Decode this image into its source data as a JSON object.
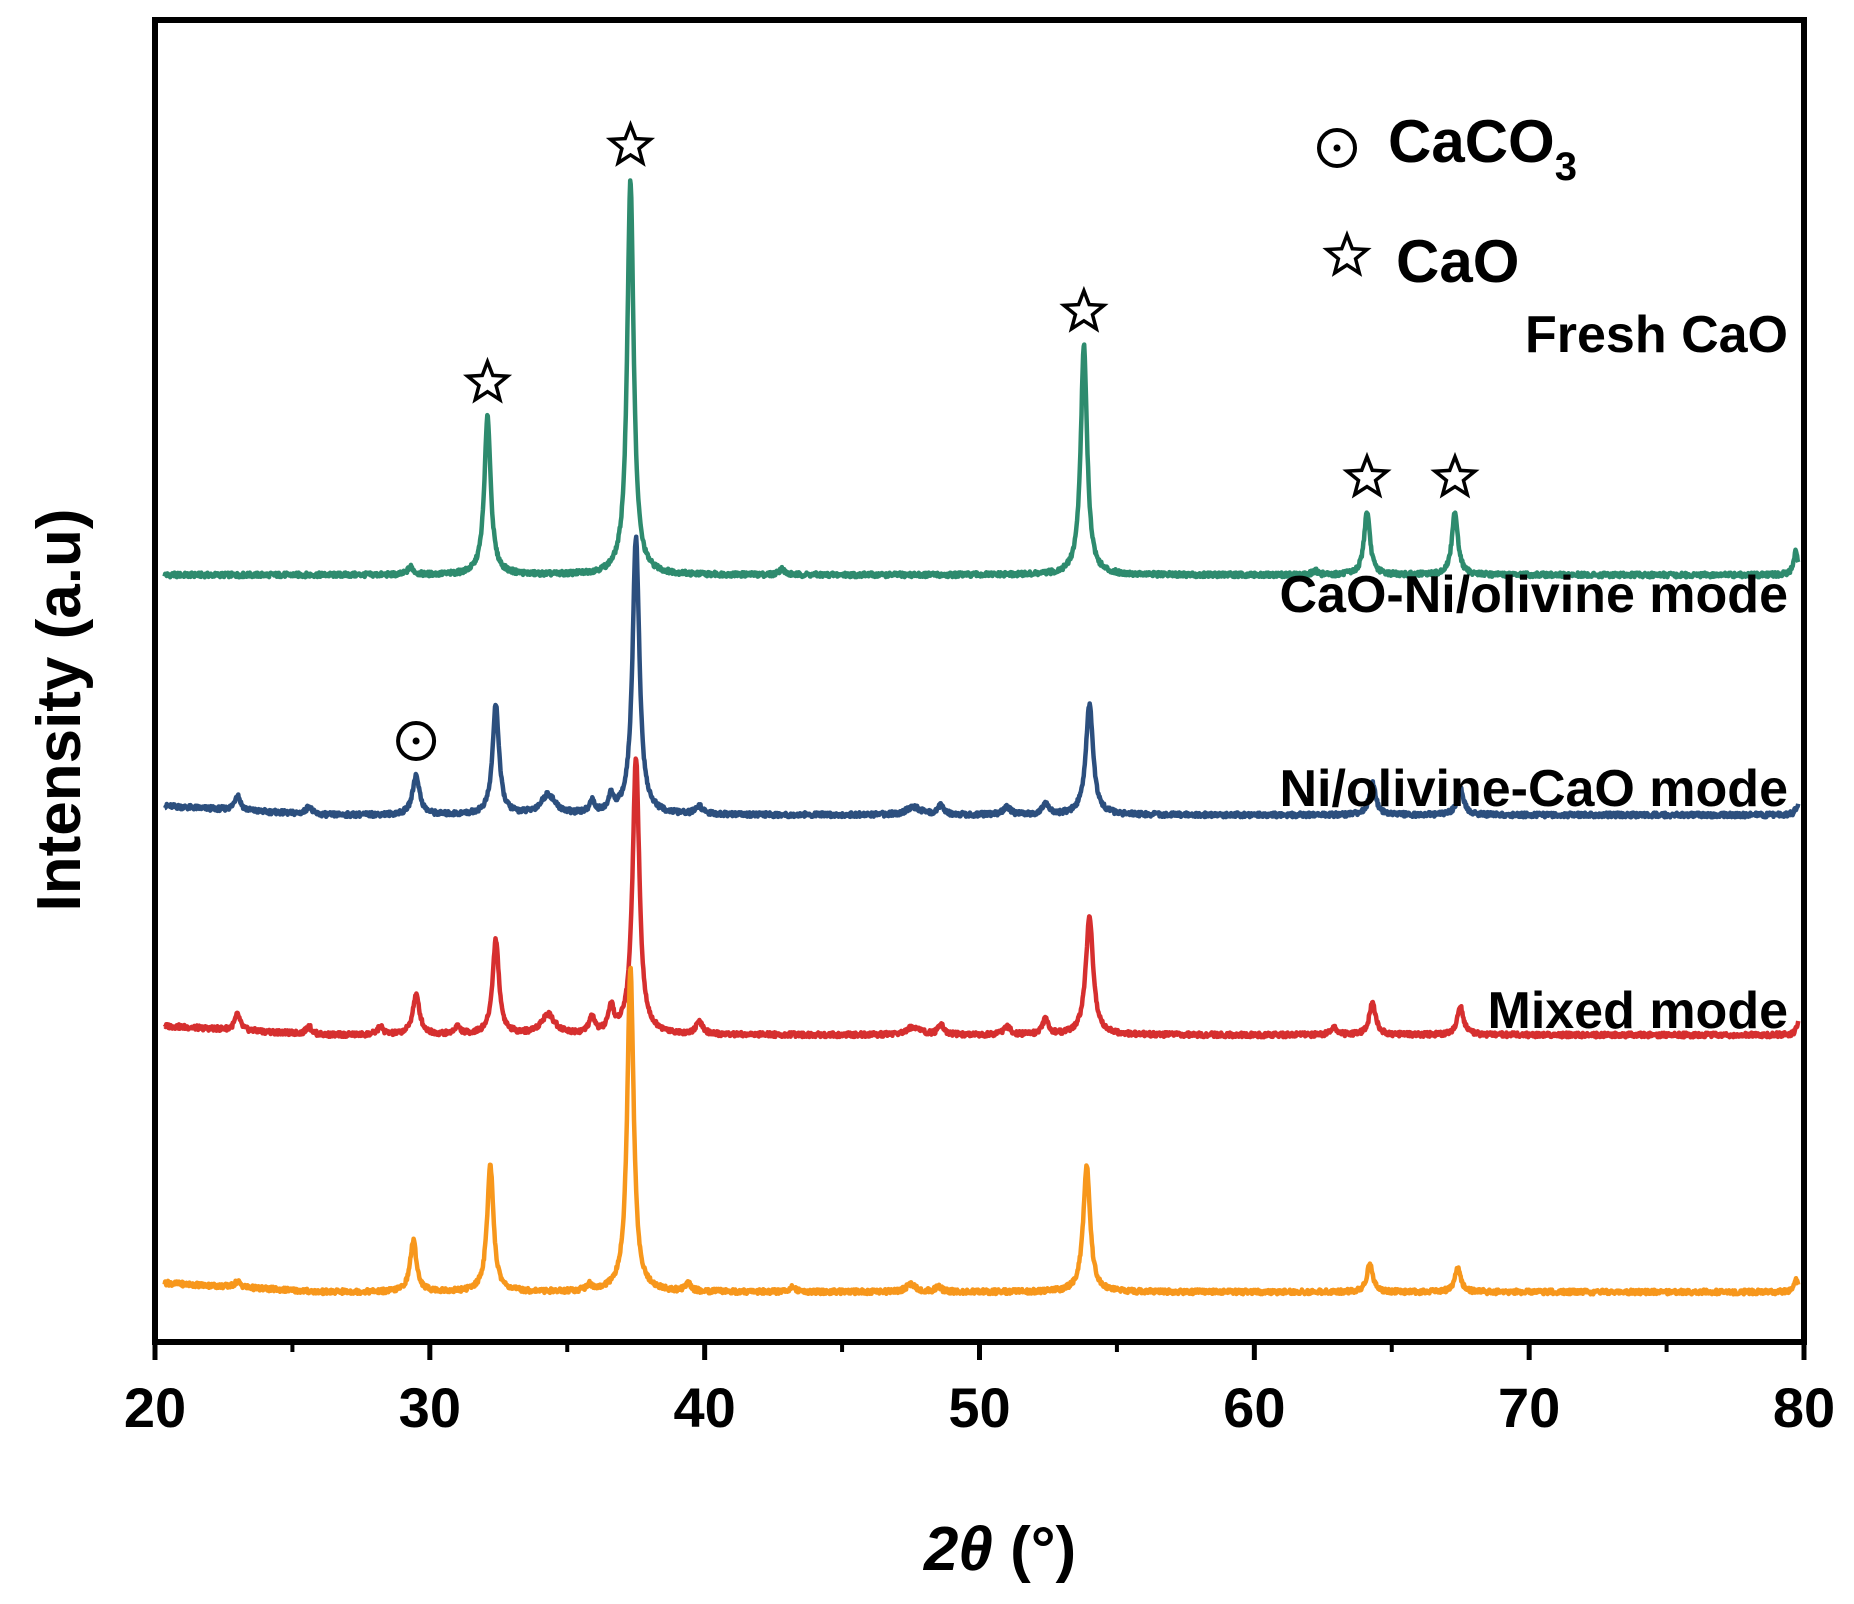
{
  "chart_data": {
    "type": "line",
    "title": "",
    "xlabel": "2θ (°)",
    "xlabel_prefix": "2θ",
    "xlabel_suffix": " (°)",
    "ylabel": "Intensity (a.u)",
    "xlim": [
      20,
      80
    ],
    "x_ticks": [
      20,
      30,
      40,
      50,
      60,
      70,
      80
    ],
    "y_ticks": [],
    "grid": false,
    "legend": [
      {
        "marker": "circle-dot",
        "label": "CaCO",
        "subscript": "3"
      },
      {
        "marker": "star",
        "label": "CaO"
      }
    ],
    "series": [
      {
        "name": "Fresh CaO",
        "color": "#2e8b6e",
        "offset": 3.0,
        "peaks": [
          {
            "x": 29.3,
            "h": 0.02,
            "w": 0.12
          },
          {
            "x": 32.1,
            "h": 0.4,
            "w": 0.14
          },
          {
            "x": 37.3,
            "h": 1.0,
            "w": 0.14
          },
          {
            "x": 42.8,
            "h": 0.015,
            "w": 0.12
          },
          {
            "x": 53.8,
            "h": 0.58,
            "w": 0.14
          },
          {
            "x": 62.2,
            "h": 0.01,
            "w": 0.12
          },
          {
            "x": 64.1,
            "h": 0.16,
            "w": 0.13
          },
          {
            "x": 67.3,
            "h": 0.16,
            "w": 0.13
          },
          {
            "x": 79.7,
            "h": 0.06,
            "w": 0.1
          }
        ]
      },
      {
        "name": "CaO-Ni/olivine mode",
        "color": "#2c4f7e",
        "offset": 2.0,
        "peaks": [
          {
            "x": 23.0,
            "h": 0.04,
            "w": 0.12
          },
          {
            "x": 25.6,
            "h": 0.02,
            "w": 0.12
          },
          {
            "x": 29.5,
            "h": 0.1,
            "w": 0.15
          },
          {
            "x": 32.4,
            "h": 0.28,
            "w": 0.14
          },
          {
            "x": 34.3,
            "h": 0.05,
            "w": 0.3
          },
          {
            "x": 35.9,
            "h": 0.03,
            "w": 0.12
          },
          {
            "x": 36.6,
            "h": 0.04,
            "w": 0.12
          },
          {
            "x": 37.5,
            "h": 0.7,
            "w": 0.15
          },
          {
            "x": 39.8,
            "h": 0.02,
            "w": 0.15
          },
          {
            "x": 47.6,
            "h": 0.02,
            "w": 0.3
          },
          {
            "x": 48.6,
            "h": 0.025,
            "w": 0.12
          },
          {
            "x": 51.0,
            "h": 0.02,
            "w": 0.15
          },
          {
            "x": 52.4,
            "h": 0.03,
            "w": 0.12
          },
          {
            "x": 54.0,
            "h": 0.28,
            "w": 0.16
          },
          {
            "x": 64.3,
            "h": 0.08,
            "w": 0.14
          },
          {
            "x": 67.5,
            "h": 0.07,
            "w": 0.14
          },
          {
            "x": 79.8,
            "h": 0.03,
            "w": 0.1
          }
        ]
      },
      {
        "name": "Ni/olivine-CaO mode",
        "color": "#d62f2f",
        "offset": 1.0,
        "peaks": [
          {
            "x": 23.0,
            "h": 0.04,
            "w": 0.12
          },
          {
            "x": 25.6,
            "h": 0.02,
            "w": 0.12
          },
          {
            "x": 28.2,
            "h": 0.02,
            "w": 0.12
          },
          {
            "x": 29.5,
            "h": 0.1,
            "w": 0.15
          },
          {
            "x": 31.0,
            "h": 0.02,
            "w": 0.12
          },
          {
            "x": 32.4,
            "h": 0.24,
            "w": 0.14
          },
          {
            "x": 34.3,
            "h": 0.05,
            "w": 0.3
          },
          {
            "x": 35.9,
            "h": 0.04,
            "w": 0.12
          },
          {
            "x": 36.6,
            "h": 0.06,
            "w": 0.12
          },
          {
            "x": 37.5,
            "h": 0.7,
            "w": 0.15
          },
          {
            "x": 39.8,
            "h": 0.03,
            "w": 0.15
          },
          {
            "x": 47.6,
            "h": 0.02,
            "w": 0.3
          },
          {
            "x": 48.6,
            "h": 0.025,
            "w": 0.12
          },
          {
            "x": 51.0,
            "h": 0.02,
            "w": 0.15
          },
          {
            "x": 52.4,
            "h": 0.04,
            "w": 0.12
          },
          {
            "x": 54.0,
            "h": 0.3,
            "w": 0.16
          },
          {
            "x": 62.9,
            "h": 0.02,
            "w": 0.12
          },
          {
            "x": 64.3,
            "h": 0.08,
            "w": 0.14
          },
          {
            "x": 67.5,
            "h": 0.07,
            "w": 0.14
          },
          {
            "x": 79.8,
            "h": 0.03,
            "w": 0.1
          }
        ]
      },
      {
        "name": "Mixed mode",
        "color": "#f7971c",
        "offset": 0.0,
        "peaks": [
          {
            "x": 23.0,
            "h": 0.015,
            "w": 0.12
          },
          {
            "x": 29.4,
            "h": 0.13,
            "w": 0.14
          },
          {
            "x": 32.2,
            "h": 0.32,
            "w": 0.14
          },
          {
            "x": 35.8,
            "h": 0.015,
            "w": 0.12
          },
          {
            "x": 37.3,
            "h": 0.82,
            "w": 0.14
          },
          {
            "x": 39.4,
            "h": 0.02,
            "w": 0.12
          },
          {
            "x": 43.2,
            "h": 0.015,
            "w": 0.12
          },
          {
            "x": 47.5,
            "h": 0.02,
            "w": 0.2
          },
          {
            "x": 48.5,
            "h": 0.015,
            "w": 0.12
          },
          {
            "x": 53.9,
            "h": 0.32,
            "w": 0.15
          },
          {
            "x": 64.2,
            "h": 0.07,
            "w": 0.13
          },
          {
            "x": 67.4,
            "h": 0.06,
            "w": 0.13
          },
          {
            "x": 79.7,
            "h": 0.03,
            "w": 0.1
          }
        ]
      }
    ],
    "annotations": [
      {
        "marker": "star",
        "x": 32.1,
        "series": "Fresh CaO"
      },
      {
        "marker": "star",
        "x": 37.3,
        "series": "Fresh CaO"
      },
      {
        "marker": "star",
        "x": 53.8,
        "series": "Fresh CaO"
      },
      {
        "marker": "star",
        "x": 64.1,
        "series": "Fresh CaO"
      },
      {
        "marker": "star",
        "x": 67.3,
        "series": "Fresh CaO"
      },
      {
        "marker": "circle-dot",
        "x": 29.5,
        "series": "CaO-Ni/olivine mode"
      }
    ]
  }
}
